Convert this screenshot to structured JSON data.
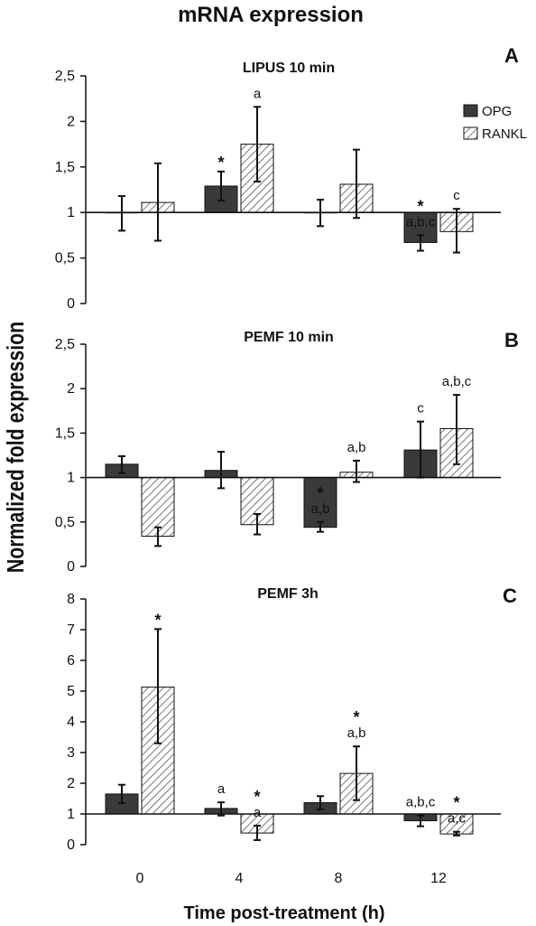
{
  "figure": {
    "title": "mRNA expression",
    "ylabel": "Normalized fold expression",
    "xlabel": "Time post-treatment (h)"
  },
  "legend": [
    {
      "name": "OPG",
      "color": "#3a3a3a",
      "pattern": "solid"
    },
    {
      "name": "RANKL",
      "color": "#ffffff",
      "pattern": "hatched"
    }
  ],
  "chart_data": [
    {
      "type": "bar",
      "panel": "A",
      "title": "LIPUS 10 min",
      "categories": [
        "0",
        "4",
        "8",
        "12"
      ],
      "ylim": [
        0,
        2.5
      ],
      "yticks": [
        "0",
        "0,5",
        "1",
        "1,5",
        "2",
        "2,5"
      ],
      "baseline": 1,
      "series": [
        {
          "name": "OPG",
          "values": [
            1.0,
            1.29,
            1.0,
            0.67
          ],
          "err_low": [
            0.8,
            1.13,
            0.85,
            0.58
          ],
          "err_high": [
            1.18,
            1.45,
            1.14,
            0.75
          ]
        },
        {
          "name": "RANKL",
          "values": [
            1.11,
            1.75,
            1.31,
            0.79
          ],
          "err_low": [
            0.69,
            1.34,
            0.94,
            0.56
          ],
          "err_high": [
            1.54,
            2.16,
            1.69,
            1.04
          ]
        }
      ],
      "annotations": [
        {
          "category": "4",
          "series": "OPG",
          "text": "*"
        },
        {
          "category": "4",
          "series": "RANKL",
          "text": "a"
        },
        {
          "category": "12",
          "series": "OPG",
          "text": "*"
        },
        {
          "category": "12",
          "series": "OPG",
          "text": "a,b,c"
        },
        {
          "category": "12",
          "series": "RANKL",
          "text": "c"
        }
      ]
    },
    {
      "type": "bar",
      "panel": "B",
      "title": "PEMF 10 min",
      "categories": [
        "0",
        "4",
        "8",
        "12"
      ],
      "ylim": [
        0,
        2.5
      ],
      "yticks": [
        "0",
        "0,5",
        "1",
        "1,5",
        "2",
        "2,5"
      ],
      "baseline": 1,
      "series": [
        {
          "name": "OPG",
          "values": [
            1.15,
            1.08,
            0.44,
            1.31
          ],
          "err_low": [
            1.05,
            0.88,
            0.39,
            1.0
          ],
          "err_high": [
            1.24,
            1.29,
            0.5,
            1.63
          ]
        },
        {
          "name": "RANKL",
          "values": [
            0.34,
            0.47,
            1.06,
            1.55
          ],
          "err_low": [
            0.23,
            0.36,
            0.95,
            1.15
          ],
          "err_high": [
            0.44,
            0.59,
            1.19,
            1.93
          ]
        }
      ],
      "annotations": [
        {
          "category": "8",
          "series": "OPG",
          "text": "*"
        },
        {
          "category": "8",
          "series": "OPG",
          "text": "a,b"
        },
        {
          "category": "8",
          "series": "RANKL",
          "text": "a,b"
        },
        {
          "category": "12",
          "series": "OPG",
          "text": "c"
        },
        {
          "category": "12",
          "series": "RANKL",
          "text": "a,b,c"
        }
      ]
    },
    {
      "type": "bar",
      "panel": "C",
      "title": "PEMF 3h",
      "categories": [
        "0",
        "4",
        "8",
        "12"
      ],
      "ylim": [
        0,
        8
      ],
      "yticks": [
        "0",
        "1",
        "2",
        "3",
        "4",
        "5",
        "6",
        "7",
        "8"
      ],
      "baseline": 1,
      "series": [
        {
          "name": "OPG",
          "values": [
            1.65,
            1.18,
            1.37,
            0.78
          ],
          "err_low": [
            1.35,
            0.95,
            1.15,
            0.6
          ],
          "err_high": [
            1.95,
            1.38,
            1.58,
            0.95
          ]
        },
        {
          "name": "RANKL",
          "values": [
            5.13,
            0.38,
            2.32,
            0.35
          ],
          "err_low": [
            3.3,
            0.15,
            1.45,
            0.3
          ],
          "err_high": [
            7.02,
            0.62,
            3.2,
            0.42
          ]
        }
      ],
      "annotations": [
        {
          "category": "0",
          "series": "RANKL",
          "text": "*"
        },
        {
          "category": "4",
          "series": "OPG",
          "text": "a"
        },
        {
          "category": "4",
          "series": "RANKL",
          "text": "*"
        },
        {
          "category": "4",
          "series": "RANKL",
          "text": "a"
        },
        {
          "category": "8",
          "series": "RANKL",
          "text": "*"
        },
        {
          "category": "8",
          "series": "RANKL",
          "text": "a,b"
        },
        {
          "category": "12",
          "series": "OPG",
          "text": "a,b,c"
        },
        {
          "category": "12",
          "series": "RANKL",
          "text": "*"
        },
        {
          "category": "12",
          "series": "RANKL",
          "text": "a,c"
        }
      ]
    }
  ]
}
